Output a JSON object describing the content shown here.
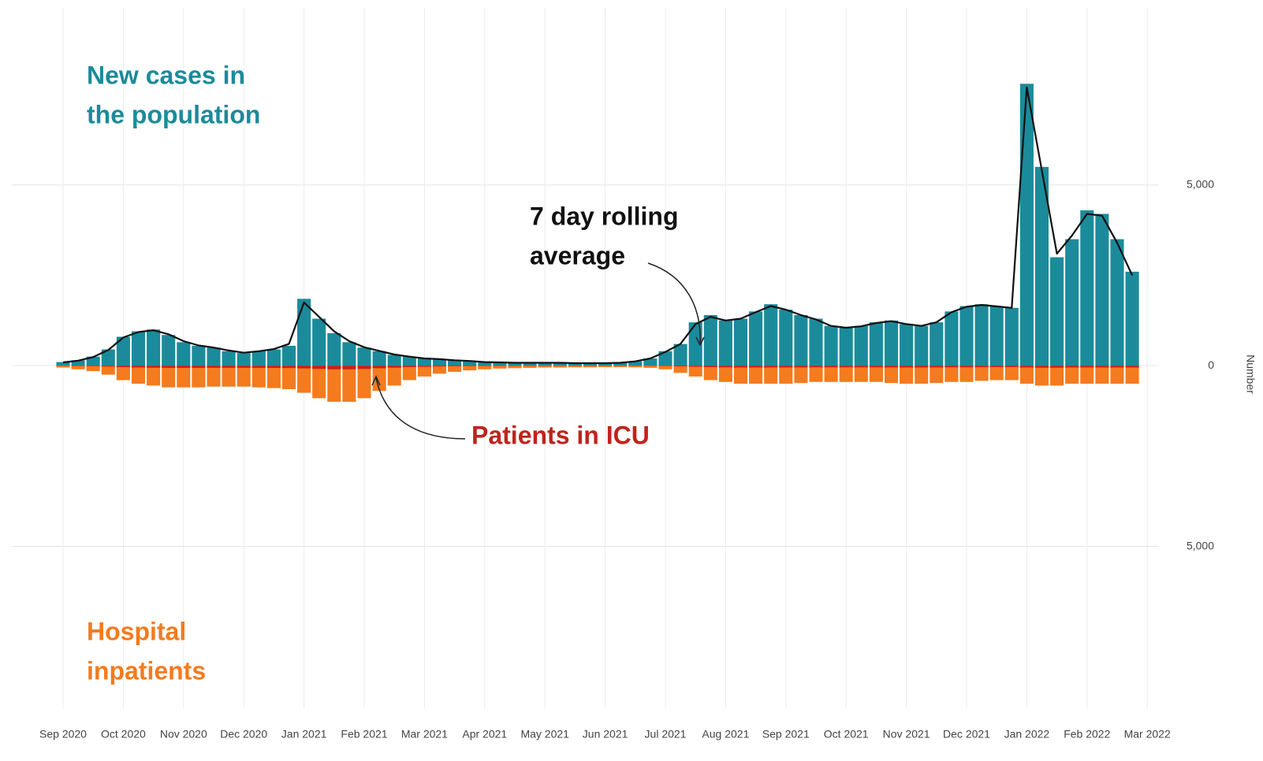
{
  "chart_data": {
    "type": "bar",
    "x": [
      0,
      0.25,
      0.5,
      0.75,
      1,
      1.25,
      1.5,
      1.75,
      2,
      2.25,
      2.5,
      2.75,
      3,
      3.25,
      3.5,
      3.75,
      4,
      4.25,
      4.5,
      4.75,
      5,
      5.25,
      5.5,
      5.75,
      6,
      6.25,
      6.5,
      6.75,
      7,
      7.25,
      7.5,
      7.75,
      8,
      8.25,
      8.5,
      8.75,
      9,
      9.25,
      9.5,
      9.75,
      10,
      10.25,
      10.5,
      10.75,
      11,
      11.25,
      11.5,
      11.75,
      12,
      12.25,
      12.5,
      12.75,
      13,
      13.25,
      13.5,
      13.75,
      14,
      14.25,
      14.5,
      14.75,
      15,
      15.25,
      15.5,
      15.75,
      16,
      16.25,
      16.5,
      16.75,
      17,
      17.25,
      17.5,
      17.75
    ],
    "series": [
      {
        "name": "New cases in the population",
        "color": "#1b8b9b",
        "values": [
          100,
          150,
          250,
          450,
          800,
          950,
          1000,
          850,
          650,
          550,
          500,
          400,
          350,
          400,
          450,
          550,
          1850,
          1300,
          900,
          650,
          500,
          400,
          300,
          250,
          200,
          180,
          150,
          130,
          100,
          90,
          80,
          80,
          80,
          80,
          70,
          70,
          70,
          80,
          120,
          200,
          400,
          600,
          1200,
          1400,
          1250,
          1300,
          1500,
          1700,
          1550,
          1400,
          1300,
          1100,
          1050,
          1100,
          1200,
          1250,
          1150,
          1100,
          1200,
          1500,
          1650,
          1700,
          1650,
          1600,
          7800,
          5500,
          3000,
          3500,
          4300,
          4200,
          3500,
          2600
        ]
      },
      {
        "name": "Hospital inpatients",
        "color": "#f47b1e",
        "values": [
          -50,
          -100,
          -150,
          -250,
          -400,
          -500,
          -550,
          -600,
          -600,
          -600,
          -580,
          -580,
          -580,
          -600,
          -620,
          -650,
          -750,
          -900,
          -1000,
          -1000,
          -900,
          -700,
          -550,
          -400,
          -300,
          -220,
          -170,
          -130,
          -100,
          -80,
          -70,
          -60,
          -50,
          -50,
          -45,
          -45,
          -40,
          -40,
          -45,
          -60,
          -100,
          -200,
          -300,
          -400,
          -450,
          -500,
          -500,
          -500,
          -500,
          -480,
          -450,
          -450,
          -450,
          -450,
          -450,
          -480,
          -500,
          -500,
          -480,
          -450,
          -450,
          -420,
          -400,
          -400,
          -500,
          -550,
          -550,
          -500,
          -500,
          -500,
          -500,
          -500
        ]
      },
      {
        "name": "Patients in ICU",
        "color": "#c1231c",
        "values": [
          -5,
          -10,
          -15,
          -25,
          -40,
          -50,
          -55,
          -60,
          -60,
          -60,
          -58,
          -58,
          -58,
          -60,
          -62,
          -65,
          -75,
          -90,
          -100,
          -100,
          -90,
          -70,
          -55,
          -40,
          -30,
          -22,
          -17,
          -13,
          -10,
          -8,
          -7,
          -6,
          -5,
          -5,
          -5,
          -5,
          -4,
          -4,
          -5,
          -6,
          -10,
          -20,
          -30,
          -40,
          -45,
          -50,
          -50,
          -50,
          -50,
          -48,
          -45,
          -45,
          -45,
          -45,
          -45,
          -48,
          -50,
          -50,
          -48,
          -45,
          -45,
          -42,
          -40,
          -40,
          -50,
          -55,
          -55,
          -50,
          -50,
          -50,
          -50,
          -50
        ]
      },
      {
        "name": "7 day rolling average",
        "color": "#111111",
        "values": [
          90,
          140,
          240,
          430,
          780,
          930,
          980,
          870,
          680,
          560,
          500,
          420,
          360,
          400,
          460,
          600,
          1750,
          1350,
          950,
          680,
          510,
          410,
          310,
          250,
          200,
          180,
          150,
          130,
          100,
          90,
          80,
          80,
          80,
          80,
          70,
          70,
          70,
          80,
          120,
          200,
          380,
          600,
          1150,
          1350,
          1250,
          1300,
          1480,
          1650,
          1550,
          1400,
          1280,
          1100,
          1050,
          1090,
          1180,
          1230,
          1150,
          1100,
          1200,
          1480,
          1630,
          1680,
          1640,
          1600,
          7700,
          5400,
          3100,
          3600,
          4200,
          4150,
          3400,
          2500
        ]
      }
    ],
    "xlim": [
      0,
      18.6
    ],
    "xticks": [
      {
        "value": 0,
        "label": "Sep 2020"
      },
      {
        "value": 1,
        "label": "Oct 2020"
      },
      {
        "value": 2,
        "label": "Nov 2020"
      },
      {
        "value": 3,
        "label": "Dec 2020"
      },
      {
        "value": 4,
        "label": "Jan 2021"
      },
      {
        "value": 5,
        "label": "Feb 2021"
      },
      {
        "value": 6,
        "label": "Mar 2021"
      },
      {
        "value": 7,
        "label": "Apr 2021"
      },
      {
        "value": 8,
        "label": "May 2021"
      },
      {
        "value": 9,
        "label": "Jun 2021"
      },
      {
        "value": 10,
        "label": "Jul 2021"
      },
      {
        "value": 11,
        "label": "Aug 2021"
      },
      {
        "value": 12,
        "label": "Sep 2021"
      },
      {
        "value": 13,
        "label": "Oct 2021"
      },
      {
        "value": 14,
        "label": "Nov 2021"
      },
      {
        "value": 15,
        "label": "Dec 2021"
      },
      {
        "value": 16,
        "label": "Jan 2022"
      },
      {
        "value": 17,
        "label": "Feb 2022"
      },
      {
        "value": 18,
        "label": "Mar 2022"
      }
    ],
    "ylim": [
      -9500,
      9900
    ],
    "yticks": [
      {
        "value": -5000,
        "label": "5,000"
      },
      0,
      {
        "value": 5000,
        "label": "5,000"
      }
    ],
    "ylabel": "Number",
    "grid": true,
    "annotations": {
      "cases": [
        "New cases in",
        "the population"
      ],
      "hospital": [
        "Hospital",
        "inpatients"
      ],
      "rolling": [
        "7 day rolling",
        "average"
      ],
      "icu": "Patients in ICU"
    }
  }
}
